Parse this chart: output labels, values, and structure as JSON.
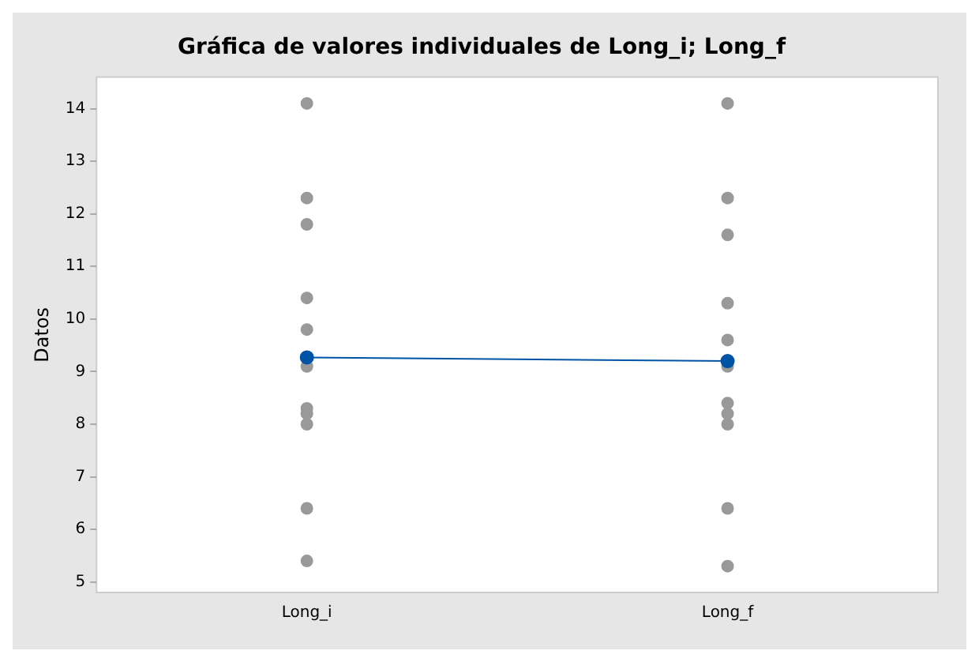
{
  "chart_data": {
    "type": "scatter",
    "title": "Gráfica de valores individuales de Long_i; Long_f",
    "ylabel": "Datos",
    "categories": [
      "Long_i",
      "Long_f"
    ],
    "series": [
      {
        "type": "scatter",
        "color": "#999999",
        "x": [
          "Long_i",
          "Long_i",
          "Long_i",
          "Long_i",
          "Long_i",
          "Long_i",
          "Long_i",
          "Long_i",
          "Long_i",
          "Long_i",
          "Long_i",
          "Long_f",
          "Long_f",
          "Long_f",
          "Long_f",
          "Long_f",
          "Long_f",
          "Long_f",
          "Long_f",
          "Long_f",
          "Long_f",
          "Long_f"
        ],
        "values": [
          14.1,
          12.3,
          11.8,
          10.4,
          9.8,
          9.1,
          8.3,
          8.2,
          8.0,
          6.4,
          5.4,
          14.1,
          12.3,
          11.6,
          10.3,
          9.6,
          9.1,
          8.4,
          8.2,
          8.0,
          6.4,
          5.3
        ]
      },
      {
        "type": "line",
        "color": "#0054a6",
        "marker": "circle",
        "values": [
          9.27,
          9.2
        ]
      }
    ],
    "ylim": [
      4.8,
      14.6
    ],
    "yticks": [
      5,
      6,
      7,
      8,
      9,
      10,
      11,
      12,
      13,
      14
    ],
    "grid": false,
    "legend": false
  }
}
